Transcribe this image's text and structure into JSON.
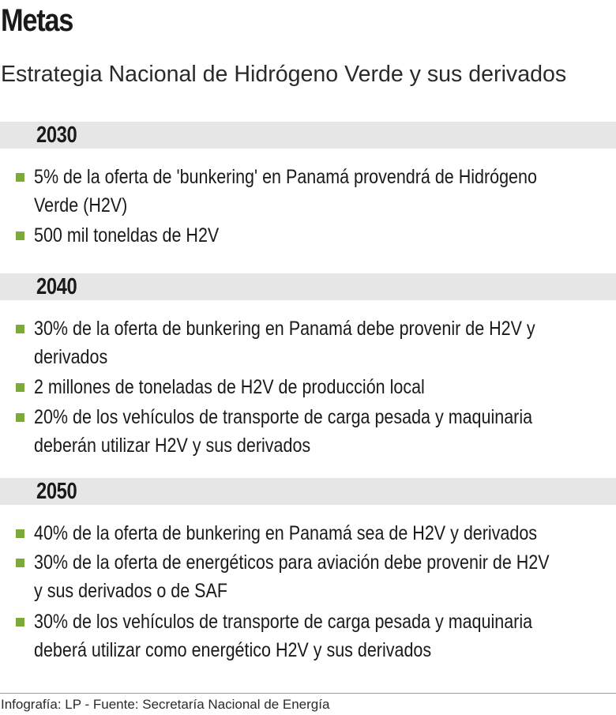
{
  "header": {
    "title": "Metas",
    "subtitle": "Estrategia Nacional de Hidrógeno Verde y sus derivados"
  },
  "sections": [
    {
      "year": "2030",
      "items": [
        {
          "lines": [
            "5% de la oferta de 'bunkering' en Panamá provendrá de Hidrógeno",
            "Verde (H2V)"
          ]
        },
        {
          "lines": [
            "500 mil toneldas de H2V"
          ]
        }
      ]
    },
    {
      "year": "2040",
      "items": [
        {
          "lines": [
            "30% de la oferta de bunkering en Panamá debe provenir de H2V y",
            "derivados"
          ]
        },
        {
          "lines": [
            "2 millones de toneladas de H2V de producción local"
          ]
        },
        {
          "lines": [
            "20% de los vehículos de transporte de carga pesada y maquinaria",
            "deberán utilizar H2V y sus derivados"
          ]
        }
      ]
    },
    {
      "year": "2050",
      "items": [
        {
          "lines": [
            "40% de la oferta de bunkering en Panamá sea de H2V y derivados"
          ]
        },
        {
          "lines": [
            "30% de la oferta de energéticos para aviación debe provenir de H2V",
            "y sus derivados o de SAF"
          ]
        },
        {
          "lines": [
            "30% de los vehículos de transporte de carga pesada y maquinaria",
            "deberá utilizar como energético H2V y sus derivados"
          ]
        }
      ]
    }
  ],
  "footer": {
    "credit": "Infografía: LP - Fuente: Secretaría Nacional de Energía"
  },
  "colors": {
    "bullet": "#7fa83a",
    "year_bar": "#e6e6e6",
    "text": "#1a1a1a"
  }
}
